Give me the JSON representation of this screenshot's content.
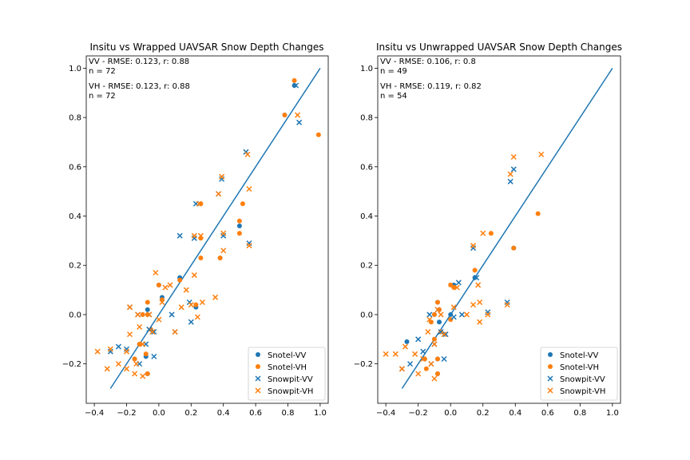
{
  "colors": {
    "vv": "#1f77b4",
    "vh": "#ff7f0e",
    "axis": "#000000"
  },
  "chart_data": [
    {
      "type": "scatter",
      "title": "Insitu vs Wrapped UAVSAR Snow Depth Changes",
      "xlim": [
        -0.45,
        1.05
      ],
      "ylim": [
        -0.36,
        1.05
      ],
      "xticks": [
        -0.4,
        -0.2,
        0.0,
        0.2,
        0.4,
        0.6,
        0.8,
        1.0
      ],
      "xtick_labels": [
        "−0.4",
        "−0.2",
        "0.0",
        "0.2",
        "0.4",
        "0.6",
        "0.8",
        "1.0"
      ],
      "yticks": [
        -0.2,
        0.0,
        0.2,
        0.4,
        0.6,
        0.8,
        1.0
      ],
      "ytick_labels": [
        "−0.2",
        "0.0",
        "0.2",
        "0.4",
        "0.6",
        "0.8",
        "1.0"
      ],
      "annotations": [
        "VV - RMSE: 0.123, r: 0.88",
        "n = 72",
        "VH - RMSE: 0.123, r: 0.88",
        "n = 72"
      ],
      "one_to_one_line": {
        "x": [
          -0.3,
          1.0
        ],
        "y": [
          -0.3,
          1.0
        ]
      },
      "legend_position": "lower-right",
      "series": [
        {
          "name": "Snotel-VV",
          "marker": "circle",
          "color": "#1f77b4",
          "points": [
            [
              0.84,
              0.93
            ],
            [
              0.78,
              0.81
            ],
            [
              0.5,
              0.36
            ],
            [
              0.38,
              0.23
            ],
            [
              0.23,
              0.03
            ],
            [
              0.13,
              0.15
            ],
            [
              0.02,
              0.07
            ],
            [
              0.0,
              0.12
            ],
            [
              -0.07,
              0.02
            ],
            [
              -0.08,
              -0.17
            ],
            [
              -0.07,
              -0.24
            ],
            [
              -0.1,
              0.0
            ],
            [
              -0.15,
              -0.18
            ],
            [
              -0.12,
              -0.12
            ]
          ]
        },
        {
          "name": "Snotel-VH",
          "marker": "circle",
          "color": "#ff7f0e",
          "points": [
            [
              0.84,
              0.95
            ],
            [
              0.99,
              0.73
            ],
            [
              0.78,
              0.81
            ],
            [
              0.5,
              0.38
            ],
            [
              0.5,
              0.33
            ],
            [
              0.52,
              0.45
            ],
            [
              0.26,
              0.45
            ],
            [
              0.26,
              0.31
            ],
            [
              0.38,
              0.23
            ],
            [
              0.26,
              0.23
            ],
            [
              0.23,
              0.04
            ],
            [
              0.13,
              0.14
            ],
            [
              0.02,
              0.06
            ],
            [
              0.0,
              0.12
            ],
            [
              -0.07,
              0.05
            ],
            [
              -0.07,
              0.0
            ],
            [
              -0.08,
              -0.16
            ],
            [
              -0.07,
              -0.24
            ],
            [
              -0.1,
              0.0
            ],
            [
              -0.15,
              -0.18
            ],
            [
              -0.12,
              -0.12
            ],
            [
              -0.05,
              -0.06
            ]
          ]
        },
        {
          "name": "Snowpit-VV",
          "marker": "x",
          "color": "#1f77b4",
          "points": [
            [
              0.85,
              0.93
            ],
            [
              0.87,
              0.78
            ],
            [
              0.54,
              0.66
            ],
            [
              0.56,
              0.29
            ],
            [
              0.39,
              0.55
            ],
            [
              0.37,
              0.49
            ],
            [
              0.23,
              0.45
            ],
            [
              0.22,
              0.31
            ],
            [
              0.13,
              0.32
            ],
            [
              0.4,
              0.32
            ],
            [
              0.19,
              0.05
            ],
            [
              0.2,
              -0.03
            ],
            [
              0.1,
              -0.07
            ],
            [
              0.08,
              0.0
            ],
            [
              -0.03,
              -0.07
            ],
            [
              -0.06,
              0.0
            ],
            [
              -0.08,
              -0.12
            ],
            [
              -0.03,
              -0.17
            ],
            [
              -0.12,
              -0.2
            ],
            [
              -0.2,
              -0.14
            ],
            [
              -0.25,
              -0.13
            ],
            [
              -0.3,
              -0.15
            ],
            [
              -0.18,
              0.03
            ],
            [
              -0.13,
              0.0
            ],
            [
              -0.06,
              -0.06
            ]
          ]
        },
        {
          "name": "Snowpit-VH",
          "marker": "x",
          "color": "#ff7f0e",
          "points": [
            [
              0.86,
              0.81
            ],
            [
              0.55,
              0.65
            ],
            [
              0.56,
              0.51
            ],
            [
              0.56,
              0.28
            ],
            [
              0.39,
              0.56
            ],
            [
              0.37,
              0.49
            ],
            [
              0.25,
              0.45
            ],
            [
              0.22,
              0.32
            ],
            [
              0.26,
              0.32
            ],
            [
              0.4,
              0.26
            ],
            [
              0.4,
              0.33
            ],
            [
              0.35,
              0.07
            ],
            [
              0.27,
              0.05
            ],
            [
              0.2,
              0.04
            ],
            [
              0.24,
              -0.01
            ],
            [
              0.22,
              0.16
            ],
            [
              0.17,
              0.1
            ],
            [
              0.14,
              0.03
            ],
            [
              0.1,
              -0.07
            ],
            [
              0.07,
              0.12
            ],
            [
              0.04,
              0.11
            ],
            [
              0.02,
              0.05
            ],
            [
              -0.02,
              0.17
            ],
            [
              0.0,
              -0.02
            ],
            [
              -0.04,
              -0.07
            ],
            [
              -0.06,
              0.0
            ],
            [
              -0.1,
              -0.12
            ],
            [
              -0.1,
              -0.25
            ],
            [
              -0.14,
              -0.2
            ],
            [
              -0.15,
              -0.24
            ],
            [
              -0.2,
              -0.22
            ],
            [
              -0.2,
              -0.15
            ],
            [
              -0.25,
              -0.2
            ],
            [
              -0.3,
              -0.14
            ],
            [
              -0.32,
              -0.22
            ],
            [
              -0.38,
              -0.15
            ],
            [
              -0.18,
              -0.08
            ],
            [
              -0.12,
              -0.05
            ],
            [
              -0.13,
              0.0
            ],
            [
              -0.18,
              0.03
            ]
          ]
        }
      ]
    },
    {
      "type": "scatter",
      "title": "Insitu vs Unwrapped UAVSAR Snow Depth Changes",
      "xlim": [
        -0.45,
        1.05
      ],
      "ylim": [
        -0.36,
        1.05
      ],
      "xticks": [
        -0.4,
        -0.2,
        0.0,
        0.2,
        0.4,
        0.6,
        0.8,
        1.0
      ],
      "xtick_labels": [
        "−0.4",
        "−0.2",
        "0.0",
        "0.2",
        "0.4",
        "0.6",
        "0.8",
        "1.0"
      ],
      "yticks": [
        -0.2,
        0.0,
        0.2,
        0.4,
        0.6,
        0.8,
        1.0
      ],
      "ytick_labels": [
        "−0.2",
        "0.0",
        "0.2",
        "0.4",
        "0.6",
        "0.8",
        "1.0"
      ],
      "annotations": [
        "VV - RMSE: 0.106, r: 0.8",
        "n = 49",
        "VH - RMSE: 0.119, r: 0.82",
        "n = 54"
      ],
      "one_to_one_line": {
        "x": [
          -0.3,
          1.0
        ],
        "y": [
          -0.3,
          1.0
        ]
      },
      "legend_position": "lower-right",
      "series": [
        {
          "name": "Snotel-VV",
          "marker": "circle",
          "color": "#1f77b4",
          "points": [
            [
              0.39,
              0.27
            ],
            [
              0.15,
              0.15
            ],
            [
              0.02,
              0.12
            ],
            [
              -0.08,
              0.05
            ],
            [
              -0.08,
              -0.18
            ],
            [
              -0.08,
              -0.24
            ],
            [
              -0.1,
              0.0
            ],
            [
              -0.16,
              -0.18
            ],
            [
              -0.27,
              -0.11
            ],
            [
              0.0,
              0.0
            ],
            [
              -0.07,
              -0.03
            ]
          ]
        },
        {
          "name": "Snotel-VH",
          "marker": "circle",
          "color": "#ff7f0e",
          "points": [
            [
              0.54,
              0.41
            ],
            [
              0.39,
              0.27
            ],
            [
              0.25,
              0.33
            ],
            [
              0.15,
              0.18
            ],
            [
              0.02,
              0.11
            ],
            [
              0.0,
              0.12
            ],
            [
              -0.08,
              0.05
            ],
            [
              -0.08,
              -0.18
            ],
            [
              -0.08,
              -0.24
            ],
            [
              -0.1,
              0.0
            ],
            [
              -0.1,
              -0.1
            ],
            [
              -0.16,
              -0.18
            ],
            [
              -0.15,
              -0.22
            ],
            [
              -0.12,
              -0.03
            ],
            [
              -0.06,
              -0.07
            ],
            [
              -0.07,
              0.02
            ],
            [
              0.0,
              -0.02
            ]
          ]
        },
        {
          "name": "Snowpit-VV",
          "marker": "x",
          "color": "#1f77b4",
          "points": [
            [
              0.39,
              0.59
            ],
            [
              0.37,
              0.54
            ],
            [
              0.35,
              0.05
            ],
            [
              0.16,
              0.15
            ],
            [
              0.14,
              0.27
            ],
            [
              0.23,
              0.01
            ],
            [
              0.05,
              0.13
            ],
            [
              0.07,
              0.0
            ],
            [
              0.02,
              -0.01
            ],
            [
              -0.03,
              -0.08
            ],
            [
              -0.06,
              -0.07
            ],
            [
              -0.04,
              -0.18
            ],
            [
              -0.1,
              -0.12
            ],
            [
              -0.12,
              -0.2
            ],
            [
              -0.2,
              -0.1
            ],
            [
              -0.25,
              -0.2
            ],
            [
              -0.3,
              -0.22
            ],
            [
              -0.13,
              0.0
            ],
            [
              -0.17,
              -0.15
            ],
            [
              -0.08,
              0.02
            ]
          ]
        },
        {
          "name": "Snowpit-VH",
          "marker": "x",
          "color": "#ff7f0e",
          "points": [
            [
              0.56,
              0.65
            ],
            [
              0.39,
              0.64
            ],
            [
              0.37,
              0.57
            ],
            [
              0.35,
              0.04
            ],
            [
              0.2,
              0.33
            ],
            [
              0.14,
              0.28
            ],
            [
              0.17,
              0.12
            ],
            [
              0.18,
              0.05
            ],
            [
              0.14,
              0.04
            ],
            [
              0.18,
              -0.03
            ],
            [
              0.23,
              0.0
            ],
            [
              0.1,
              0.0
            ],
            [
              0.04,
              0.11
            ],
            [
              0.02,
              0.03
            ],
            [
              -0.04,
              -0.08
            ],
            [
              -0.1,
              -0.12
            ],
            [
              -0.1,
              -0.26
            ],
            [
              -0.12,
              -0.2
            ],
            [
              -0.17,
              -0.18
            ],
            [
              -0.2,
              -0.24
            ],
            [
              -0.22,
              -0.16
            ],
            [
              -0.28,
              -0.13
            ],
            [
              -0.3,
              -0.22
            ],
            [
              -0.34,
              -0.16
            ],
            [
              -0.4,
              -0.16
            ],
            [
              -0.14,
              -0.07
            ],
            [
              -0.13,
              -0.02
            ],
            [
              -0.08,
              0.02
            ],
            [
              -0.06,
              0.0
            ]
          ]
        }
      ]
    }
  ]
}
